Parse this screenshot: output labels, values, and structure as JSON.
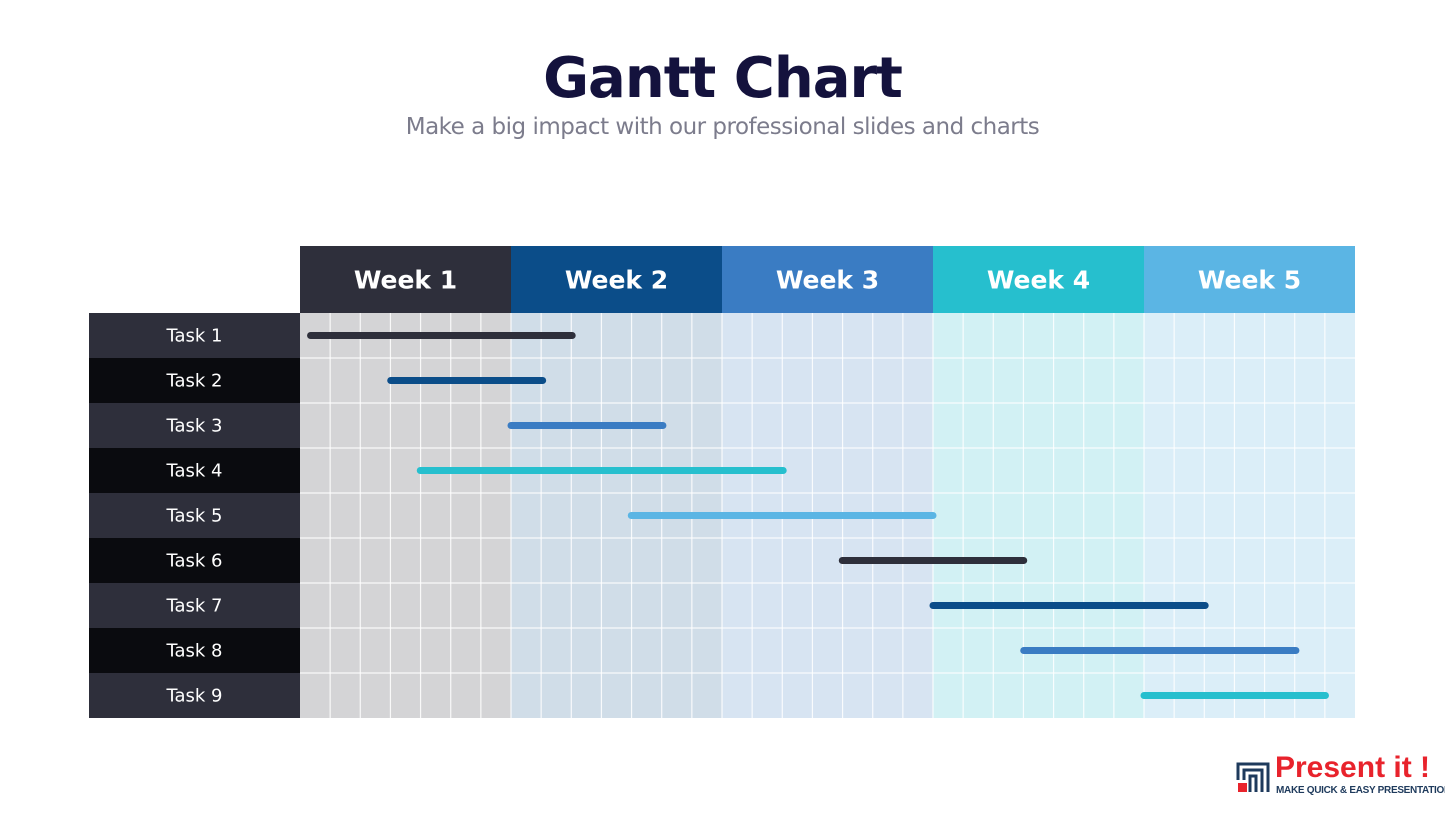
{
  "title": "Gantt Chart",
  "subtitle": "Make a big impact with our professional slides and charts",
  "logo": {
    "name": "Present it !",
    "tagline": "MAKE QUICK & EASY PRESENTATIONS"
  },
  "colors": {
    "row_dark": "#2e2f3b",
    "row_black": "#0a0b0f",
    "grid_line": "#ffffff"
  },
  "chart_data": {
    "type": "gantt",
    "weeks": [
      {
        "label": "Week 1",
        "header_color": "#2e2f3b",
        "fill_color": "#d4d4d6"
      },
      {
        "label": "Week 2",
        "header_color": "#0b4d89",
        "fill_color": "#d0dde8"
      },
      {
        "label": "Week 3",
        "header_color": "#3a7cc3",
        "fill_color": "#d7e4f2"
      },
      {
        "label": "Week 4",
        "header_color": "#26bfce",
        "fill_color": "#d2f1f4"
      },
      {
        "label": "Week 5",
        "header_color": "#5bb5e4",
        "fill_color": "#dbeef8"
      }
    ],
    "subdivisions_per_week": 7,
    "tasks": [
      {
        "label": "Task 1",
        "start": 0.05,
        "end": 1.29,
        "color": "#2e2f3b"
      },
      {
        "label": "Task 2",
        "start": 0.43,
        "end": 1.15,
        "color": "#0b4d89"
      },
      {
        "label": "Task 3",
        "start": 1.0,
        "end": 1.72,
        "color": "#3a7cc3"
      },
      {
        "label": "Task 4",
        "start": 0.57,
        "end": 2.29,
        "color": "#26bfce"
      },
      {
        "label": "Task 5",
        "start": 1.57,
        "end": 3.0,
        "color": "#5bb5e4"
      },
      {
        "label": "Task 6",
        "start": 2.57,
        "end": 3.43,
        "color": "#2e2f3b"
      },
      {
        "label": "Task 7",
        "start": 3.0,
        "end": 4.29,
        "color": "#0b4d89"
      },
      {
        "label": "Task 8",
        "start": 3.43,
        "end": 4.72,
        "color": "#3a7cc3"
      },
      {
        "label": "Task 9",
        "start": 4.0,
        "end": 4.86,
        "color": "#26bfce"
      }
    ]
  }
}
